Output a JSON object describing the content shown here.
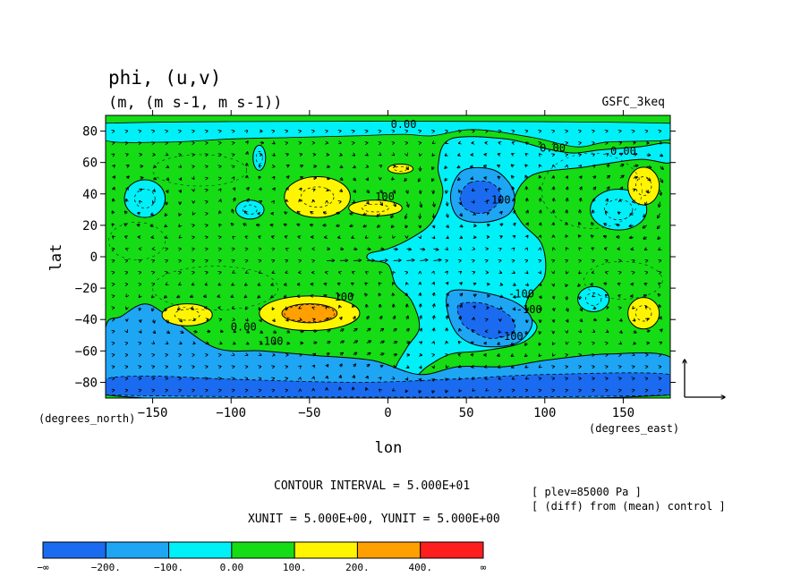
{
  "chart_data": {
    "type": "heatmap",
    "title": "phi, (u,v)",
    "subtitle": "(m, (m s-1, m s-1))",
    "model": "GSFC_3keq",
    "xlabel": "lon",
    "ylabel": "lat",
    "x_unit_label": "(degrees_east)",
    "y_unit_label": "(degrees_north)",
    "xlim": [
      -180,
      180
    ],
    "ylim": [
      -90,
      90
    ],
    "x_ticks": [
      -150,
      -100,
      -50,
      0,
      50,
      100,
      150
    ],
    "x_tick_labels": [
      "−150",
      "−100",
      "−50",
      "0",
      "50",
      "100",
      "150"
    ],
    "y_ticks": [
      80,
      60,
      40,
      20,
      0,
      -20,
      -40,
      -60,
      -80
    ],
    "y_tick_labels": [
      "80",
      "60",
      "40",
      "20",
      "0",
      "−20",
      "−40",
      "−60",
      "−80"
    ],
    "contour_interval_text": "CONTOUR INTERVAL = 5.000E+01",
    "units_text": "XUNIT = 5.000E+00, YUNIT = 5.000E+00",
    "level_text": "[ plev=85000 Pa ]",
    "diff_text": "[ (diff) from (mean) control ]",
    "contour_labels": [
      {
        "text": "0.00",
        "lon": 10,
        "lat": 82
      },
      {
        "text": "0.00",
        "lon": 105,
        "lat": 67
      },
      {
        "text": "0.00",
        "lon": 150,
        "lat": 65
      },
      {
        "text": "100",
        "lon": -2,
        "lat": 36
      },
      {
        "text": "-100",
        "lon": 70,
        "lat": 34
      },
      {
        "text": "-100",
        "lon": 85,
        "lat": -26
      },
      {
        "text": "-100",
        "lon": 90,
        "lat": -36
      },
      {
        "text": "-100",
        "lon": 78,
        "lat": -53
      },
      {
        "text": "100",
        "lon": -28,
        "lat": -28
      },
      {
        "text": "0.00",
        "lon": -92,
        "lat": -47
      },
      {
        "text": "-100",
        "lon": -75,
        "lat": -56
      }
    ],
    "colorbar": {
      "labels": [
        "−∞",
        "−200.",
        "−100.",
        "0.00",
        "100.",
        "200.",
        "400.",
        "∞"
      ],
      "colors": [
        "#1a6bf0",
        "#1ea6f5",
        "#00f0f8",
        "#15dc15",
        "#fff500",
        "#ffa000",
        "#ff1e1e"
      ]
    },
    "background_color": "#15dc15",
    "blobs": [
      {
        "lon": -155,
        "lat": 37,
        "rx": 13,
        "ry": 12,
        "levels": [
          "#00f0f8"
        ]
      },
      {
        "lon": -88,
        "lat": 30,
        "rx": 9,
        "ry": 6,
        "levels": [
          "#00f0f8"
        ]
      },
      {
        "lon": -82,
        "lat": 63,
        "rx": 4,
        "ry": 8,
        "levels": [
          "#00f0f8"
        ]
      },
      {
        "lon": -45,
        "lat": 38,
        "rx": 21,
        "ry": 13,
        "levels": [
          "#fff500"
        ]
      },
      {
        "lon": -8,
        "lat": 31,
        "rx": 17,
        "ry": 5,
        "levels": [
          "#fff500"
        ]
      },
      {
        "lon": 8,
        "lat": 56,
        "rx": 8,
        "ry": 3,
        "levels": [
          "#fff500"
        ]
      },
      {
        "lon": 147,
        "lat": 30,
        "rx": 18,
        "ry": 13,
        "levels": [
          "#00f0f8"
        ]
      },
      {
        "lon": 163,
        "lat": 45,
        "rx": 10,
        "ry": 12,
        "levels": [
          "#fff500"
        ]
      },
      {
        "lon": -128,
        "lat": -37,
        "rx": 16,
        "ry": 7,
        "levels": [
          "#fff500"
        ]
      },
      {
        "lon": -50,
        "lat": -36,
        "rx": 32,
        "ry": 11,
        "levels": [
          "#fff500",
          "#ffa000"
        ]
      },
      {
        "lon": 131,
        "lat": -27,
        "rx": 10,
        "ry": 8,
        "levels": [
          "#00f0f8"
        ]
      },
      {
        "lon": 163,
        "lat": -36,
        "rx": 10,
        "ry": 10,
        "levels": [
          "#fff500"
        ]
      }
    ],
    "cyan_band": [
      [
        28,
        77
      ],
      [
        55,
        81
      ],
      [
        92,
        76
      ],
      [
        120,
        70
      ],
      [
        140,
        73
      ],
      [
        175,
        74
      ],
      [
        180,
        76
      ],
      [
        180,
        85
      ],
      [
        -180,
        85
      ],
      [
        -180,
        74
      ],
      [
        -140,
        73
      ],
      [
        -100,
        75
      ],
      [
        -60,
        76
      ],
      [
        -20,
        77
      ],
      [
        10,
        78
      ]
    ],
    "cyan_region": [
      [
        40,
        75
      ],
      [
        75,
        75
      ],
      [
        100,
        69
      ],
      [
        118,
        66
      ],
      [
        135,
        68
      ],
      [
        160,
        70
      ],
      [
        180,
        72
      ],
      [
        180,
        60
      ],
      [
        160,
        62
      ],
      [
        125,
        57
      ],
      [
        92,
        52
      ],
      [
        80,
        35
      ],
      [
        85,
        22
      ],
      [
        98,
        8
      ],
      [
        100,
        -12
      ],
      [
        90,
        -25
      ],
      [
        88,
        -35
      ],
      [
        95,
        -45
      ],
      [
        85,
        -55
      ],
      [
        60,
        -60
      ],
      [
        40,
        -62
      ],
      [
        25,
        -70
      ],
      [
        15,
        -78
      ],
      [
        5,
        -72
      ],
      [
        12,
        -58
      ],
      [
        20,
        -45
      ],
      [
        15,
        -28
      ],
      [
        5,
        -18
      ],
      [
        0,
        -5
      ],
      [
        -12,
        -2
      ],
      [
        -12,
        2
      ],
      [
        0,
        5
      ],
      [
        15,
        12
      ],
      [
        28,
        22
      ],
      [
        35,
        40
      ],
      [
        32,
        58
      ]
    ],
    "blue_regions": [
      {
        "outer": [
          [
            -180,
            -88
          ],
          [
            180,
            -88
          ],
          [
            180,
            -64
          ],
          [
            140,
            -62
          ],
          [
            100,
            -66
          ],
          [
            75,
            -70
          ],
          [
            45,
            -70
          ],
          [
            20,
            -75
          ],
          [
            -10,
            -66
          ],
          [
            -45,
            -63
          ],
          [
            -80,
            -60
          ],
          [
            -110,
            -58
          ],
          [
            -140,
            -38
          ],
          [
            -155,
            -30
          ],
          [
            -170,
            -38
          ],
          [
            -180,
            -45
          ]
        ],
        "inner": [
          [
            -180,
            -88
          ],
          [
            180,
            -88
          ],
          [
            180,
            -75
          ],
          [
            100,
            -75
          ],
          [
            40,
            -78
          ],
          [
            -20,
            -80
          ],
          [
            -100,
            -78
          ],
          [
            -150,
            -76
          ],
          [
            -180,
            -78
          ]
        ]
      },
      {
        "outer": [
          [
            48,
            55
          ],
          [
            68,
            55
          ],
          [
            80,
            42
          ],
          [
            78,
            28
          ],
          [
            62,
            22
          ],
          [
            45,
            25
          ],
          [
            40,
            40
          ]
        ],
        "inner": [
          [
            52,
            47
          ],
          [
            66,
            47
          ],
          [
            72,
            37
          ],
          [
            62,
            28
          ],
          [
            50,
            30
          ],
          [
            46,
            38
          ]
        ]
      },
      {
        "outer": [
          [
            40,
            -22
          ],
          [
            62,
            -23
          ],
          [
            83,
            -30
          ],
          [
            92,
            -42
          ],
          [
            82,
            -55
          ],
          [
            60,
            -57
          ],
          [
            45,
            -50
          ],
          [
            38,
            -35
          ]
        ],
        "inner": [
          [
            46,
            -30
          ],
          [
            62,
            -30
          ],
          [
            78,
            -38
          ],
          [
            80,
            -48
          ],
          [
            65,
            -52
          ],
          [
            50,
            -45
          ],
          [
            45,
            -37
          ]
        ]
      }
    ]
  }
}
